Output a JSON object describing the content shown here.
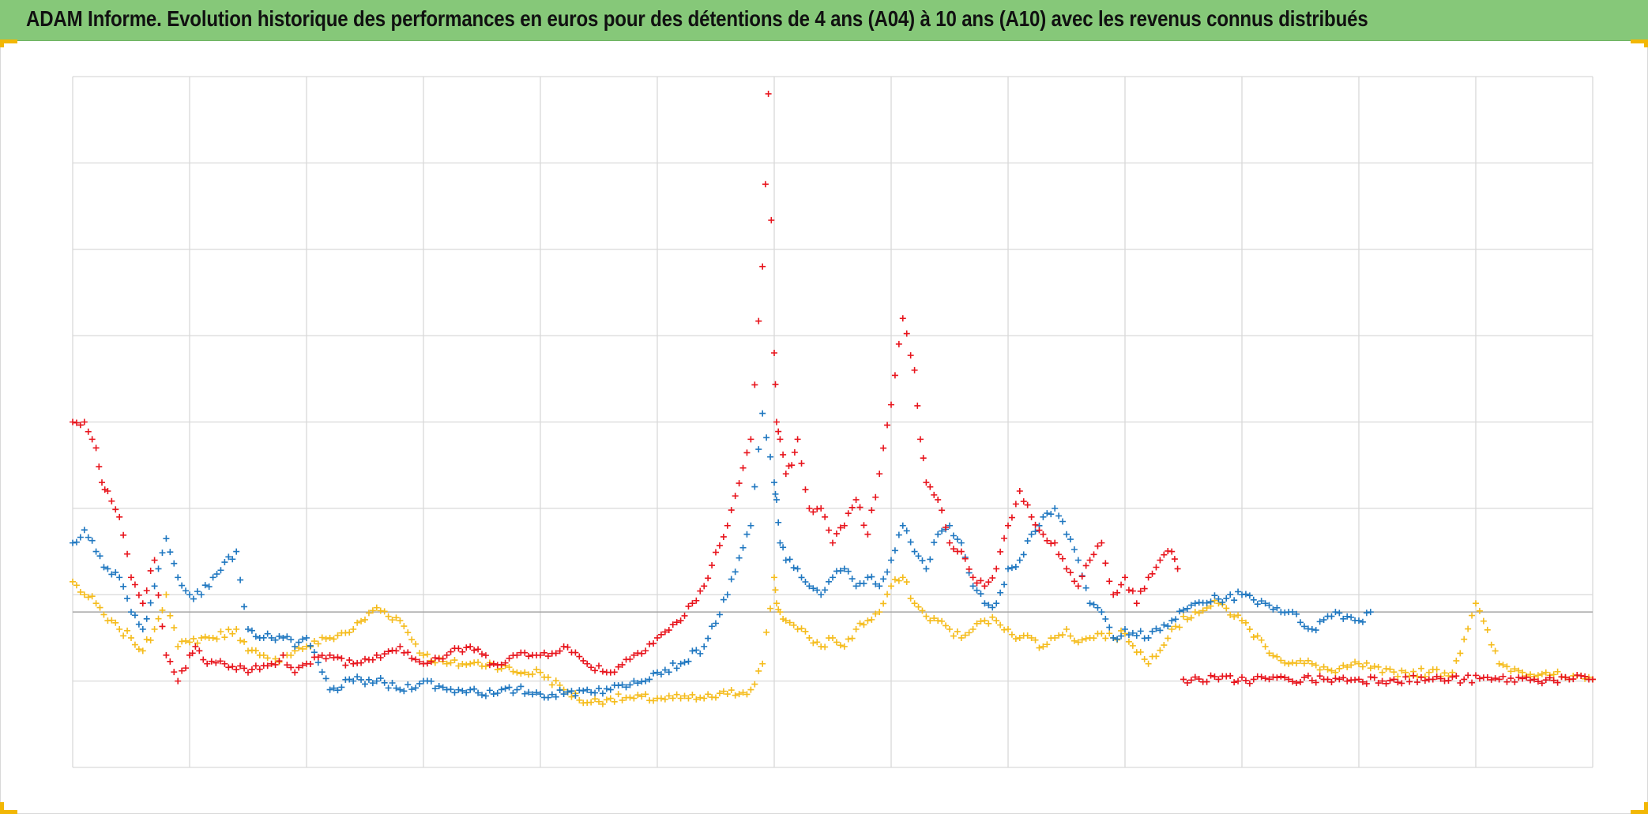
{
  "title": "ADAM Informe. Evolution historique des performances en euros pour des détentions de 4 ans (A04) à 10 ans (A10) avec les revenus connus distribués",
  "chart_data": {
    "type": "scatter",
    "title": "ADAM Informe. Evolution historique des performances en euros pour des détentions de 4 ans (A04) à 10 ans (A10) avec les revenus connus distribués",
    "xlabel": "",
    "ylabel": "",
    "xlim": [
      0,
      13
    ],
    "ylim": [
      -1.8,
      6.2
    ],
    "grid": true,
    "legend": "none",
    "marker": "plus",
    "reference_line_y": 0,
    "series": [
      {
        "color": "#e8141c",
        "x": [
          0.0,
          0.1,
          0.2,
          0.25,
          0.3,
          0.4,
          0.5,
          0.6,
          0.7,
          0.8,
          0.9,
          1.0,
          1.05,
          1.15,
          1.3,
          1.5,
          1.7,
          1.8,
          1.9,
          2.0,
          2.2,
          2.4,
          2.6,
          2.8,
          3.0,
          3.2,
          3.4,
          3.6,
          3.8,
          4.0,
          4.2,
          4.4,
          4.6,
          4.8,
          5.0,
          5.2,
          5.4,
          5.6,
          5.8,
          5.9,
          5.95,
          6.0,
          6.02,
          6.05,
          6.1,
          6.15,
          6.2,
          6.3,
          6.4,
          6.5,
          6.6,
          6.7,
          6.8,
          6.9,
          7.0,
          7.1,
          7.2,
          7.25,
          7.3,
          7.4,
          7.5,
          7.6,
          7.7,
          7.8,
          7.9,
          8.0,
          8.1,
          8.2,
          8.3,
          8.4,
          8.5,
          8.6,
          8.7,
          8.8,
          8.9,
          9.0,
          9.1,
          9.2,
          9.3,
          9.4,
          9.45
        ],
        "y": [
          2.2,
          2.2,
          1.9,
          1.5,
          1.4,
          1.1,
          0.4,
          0.1,
          0.6,
          -0.5,
          -0.8,
          -0.5,
          -0.4,
          -0.6,
          -0.6,
          -0.7,
          -0.6,
          -0.5,
          -0.7,
          -0.6,
          -0.5,
          -0.6,
          -0.5,
          -0.4,
          -0.6,
          -0.5,
          -0.4,
          -0.6,
          -0.5,
          -0.5,
          -0.4,
          -0.6,
          -0.7,
          -0.5,
          -0.3,
          -0.1,
          0.3,
          1.0,
          2.0,
          4.0,
          6.0,
          3.0,
          2.2,
          2.0,
          1.6,
          1.7,
          2.0,
          1.2,
          1.2,
          0.8,
          1.0,
          1.3,
          0.9,
          1.6,
          2.4,
          3.4,
          2.8,
          2.0,
          1.5,
          1.3,
          0.8,
          0.7,
          0.4,
          0.3,
          0.5,
          1.0,
          1.4,
          1.1,
          0.9,
          0.8,
          0.5,
          0.3,
          0.6,
          0.8,
          0.2,
          0.4,
          0.1,
          0.4,
          0.6,
          0.7,
          0.5
        ]
      },
      {
        "color": "#e8141c",
        "x": [
          9.5,
          9.8,
          10.1,
          10.4,
          10.7,
          11.0,
          11.3,
          11.6,
          11.9,
          12.2,
          12.5,
          12.8,
          13.0
        ],
        "y": [
          -0.78,
          -0.78,
          -0.78,
          -0.78,
          -0.78,
          -0.78,
          -0.78,
          -0.78,
          -0.78,
          -0.78,
          -0.78,
          -0.78,
          -0.78
        ]
      },
      {
        "color": "#1f77c0",
        "x": [
          0.0,
          0.1,
          0.2,
          0.3,
          0.4,
          0.5,
          0.6,
          0.7,
          0.8,
          0.9,
          1.0,
          1.1,
          1.2,
          1.4,
          1.5,
          1.6,
          1.7,
          1.8,
          1.9,
          2.0,
          2.2,
          2.4,
          2.6,
          2.8,
          3.0,
          3.2,
          3.4,
          3.6,
          3.8,
          4.0,
          4.2,
          4.4,
          4.6,
          4.8,
          5.0,
          5.2,
          5.4,
          5.6,
          5.8,
          5.9,
          6.0,
          6.02,
          6.05,
          6.1,
          6.2,
          6.3,
          6.4,
          6.5,
          6.6,
          6.7,
          6.8,
          6.9,
          7.0,
          7.1,
          7.2,
          7.3,
          7.4,
          7.5,
          7.6,
          7.7,
          7.8,
          7.9,
          8.0,
          8.1,
          8.2,
          8.3,
          8.4,
          8.5,
          8.6,
          8.7,
          8.8,
          8.9,
          9.0,
          9.2,
          9.4,
          9.6,
          9.8,
          10.0,
          10.2,
          10.4,
          10.6,
          10.8,
          11.0,
          11.1
        ],
        "y": [
          0.8,
          0.95,
          0.7,
          0.5,
          0.4,
          0.0,
          -0.2,
          0.3,
          0.85,
          0.4,
          0.2,
          0.2,
          0.4,
          0.7,
          -0.2,
          -0.3,
          -0.3,
          -0.3,
          -0.4,
          -0.3,
          -0.9,
          -0.8,
          -0.8,
          -0.9,
          -0.8,
          -0.9,
          -0.9,
          -0.95,
          -0.9,
          -0.95,
          -0.95,
          -0.9,
          -0.9,
          -0.8,
          -0.7,
          -0.6,
          -0.4,
          0.2,
          1.0,
          2.3,
          1.5,
          1.3,
          0.8,
          0.6,
          0.5,
          0.3,
          0.2,
          0.4,
          0.5,
          0.3,
          0.4,
          0.3,
          0.6,
          1.0,
          0.7,
          0.5,
          0.9,
          1.0,
          0.8,
          0.3,
          0.1,
          0.1,
          0.5,
          0.6,
          0.9,
          1.1,
          1.2,
          0.9,
          0.6,
          0.1,
          0.0,
          -0.3,
          -0.2,
          -0.3,
          -0.1,
          0.1,
          0.15,
          0.2,
          0.1,
          0.0,
          -0.2,
          0.0,
          -0.1,
          0.0
        ]
      },
      {
        "color": "#f5bc1c",
        "x": [
          0.0,
          0.1,
          0.2,
          0.3,
          0.4,
          0.5,
          0.6,
          0.7,
          0.8,
          0.9,
          1.0,
          1.1,
          1.2,
          1.4,
          1.5,
          1.6,
          1.7,
          1.8,
          1.9,
          2.0,
          2.2,
          2.4,
          2.6,
          2.8,
          3.0,
          3.2,
          3.4,
          3.6,
          3.8,
          4.0,
          4.2,
          4.4,
          4.6,
          4.8,
          5.0,
          5.2,
          5.4,
          5.6,
          5.8,
          5.9,
          6.0,
          6.02,
          6.05,
          6.1,
          6.2,
          6.3,
          6.4,
          6.5,
          6.6,
          6.7,
          6.8,
          6.9,
          7.0,
          7.1,
          7.2,
          7.3,
          7.4,
          7.5,
          7.6,
          7.7,
          7.8,
          7.9,
          8.0,
          8.1,
          8.2,
          8.3,
          8.4,
          8.5,
          8.6,
          8.7,
          8.8,
          8.9,
          9.0,
          9.2,
          9.4,
          9.6,
          9.8,
          10.0,
          10.2,
          10.4,
          10.6,
          10.8,
          11.0,
          11.2,
          11.4,
          11.6,
          11.8,
          12.0,
          12.2,
          12.4,
          12.6,
          12.8,
          13.0
        ],
        "y": [
          0.35,
          0.2,
          0.1,
          -0.1,
          -0.2,
          -0.3,
          -0.45,
          -0.2,
          0.2,
          -0.4,
          -0.35,
          -0.3,
          -0.3,
          -0.2,
          -0.45,
          -0.5,
          -0.6,
          -0.5,
          -0.45,
          -0.4,
          -0.3,
          -0.2,
          0.05,
          -0.1,
          -0.5,
          -0.6,
          -0.6,
          -0.6,
          -0.7,
          -0.7,
          -0.9,
          -1.05,
          -1.0,
          -1.0,
          -1.0,
          -1.0,
          -1.0,
          -0.95,
          -0.9,
          -0.6,
          0.4,
          0.1,
          0.0,
          -0.1,
          -0.2,
          -0.3,
          -0.4,
          -0.3,
          -0.4,
          -0.2,
          -0.1,
          0.0,
          0.3,
          0.4,
          0.1,
          -0.05,
          -0.1,
          -0.2,
          -0.3,
          -0.2,
          -0.1,
          -0.1,
          -0.2,
          -0.3,
          -0.3,
          -0.4,
          -0.3,
          -0.2,
          -0.35,
          -0.3,
          -0.25,
          -0.3,
          -0.25,
          -0.6,
          -0.2,
          0.0,
          0.1,
          -0.1,
          -0.4,
          -0.6,
          -0.6,
          -0.7,
          -0.6,
          -0.7,
          -0.7,
          -0.7,
          -0.7,
          0.1,
          -0.6,
          -0.7,
          -0.7,
          -0.78,
          -0.78
        ]
      }
    ]
  }
}
